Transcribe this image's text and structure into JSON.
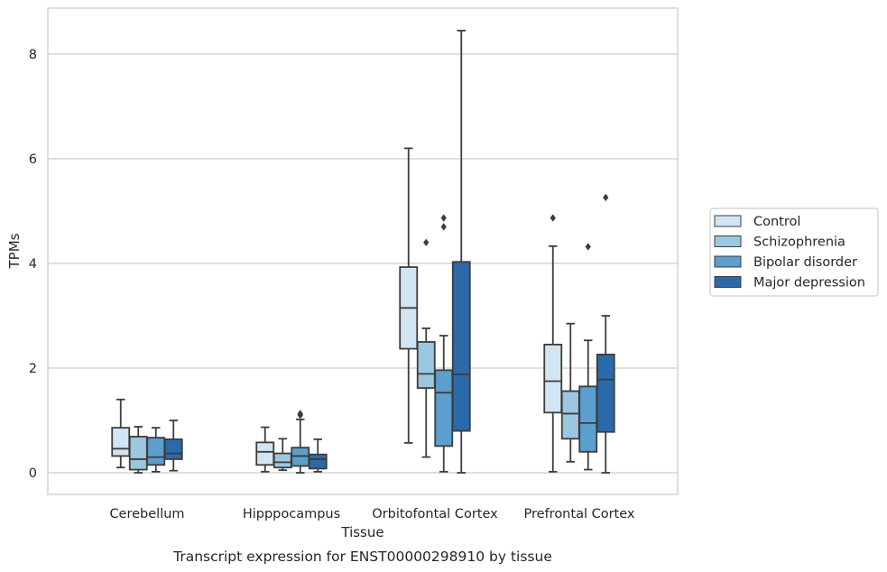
{
  "chart_data": {
    "type": "box",
    "caption": "Transcript expression for ENST00000298910 by tissue",
    "xlabel": "Tissue",
    "ylabel": "TPMs",
    "ylim": [
      -0.4,
      8.9
    ],
    "yticks": [
      0,
      2,
      4,
      6,
      8
    ],
    "grid": "horizontal",
    "legend_position": "right",
    "categories": [
      "Cerebellum",
      "Hipppocampus",
      "Orbitofontal Cortex",
      "Prefrontal Cortex"
    ],
    "series": [
      {
        "name": "Control",
        "color": "#d3e4f3",
        "boxes": [
          {
            "min": 0.1,
            "q1": 0.32,
            "median": 0.46,
            "q3": 0.86,
            "max": 1.4,
            "outliers": []
          },
          {
            "min": 0.02,
            "q1": 0.15,
            "median": 0.4,
            "q3": 0.58,
            "max": 0.87,
            "outliers": []
          },
          {
            "min": 0.57,
            "q1": 2.37,
            "median": 3.15,
            "q3": 3.93,
            "max": 6.2,
            "outliers": []
          },
          {
            "min": 0.02,
            "q1": 1.15,
            "median": 1.75,
            "q3": 2.45,
            "max": 4.33,
            "outliers": [
              4.87
            ]
          }
        ]
      },
      {
        "name": "Schizophrenia",
        "color": "#9ac8e0",
        "boxes": [
          {
            "min": 0.0,
            "q1": 0.06,
            "median": 0.26,
            "q3": 0.69,
            "max": 0.88,
            "outliers": []
          },
          {
            "min": 0.05,
            "q1": 0.1,
            "median": 0.2,
            "q3": 0.37,
            "max": 0.65,
            "outliers": []
          },
          {
            "min": 0.3,
            "q1": 1.62,
            "median": 1.89,
            "q3": 2.5,
            "max": 2.76,
            "outliers": [
              4.4
            ]
          },
          {
            "min": 0.21,
            "q1": 0.65,
            "median": 1.13,
            "q3": 1.56,
            "max": 2.85,
            "outliers": []
          }
        ]
      },
      {
        "name": "Bipolar disorder",
        "color": "#5a9fcd",
        "boxes": [
          {
            "min": 0.02,
            "q1": 0.15,
            "median": 0.3,
            "q3": 0.67,
            "max": 0.86,
            "outliers": []
          },
          {
            "min": 0.0,
            "q1": 0.13,
            "median": 0.32,
            "q3": 0.48,
            "max": 1.02,
            "outliers": [
              1.1,
              1.13
            ]
          },
          {
            "min": 0.02,
            "q1": 0.51,
            "median": 1.53,
            "q3": 1.96,
            "max": 2.62,
            "outliers": [
              4.7,
              4.87
            ]
          },
          {
            "min": 0.06,
            "q1": 0.4,
            "median": 0.95,
            "q3": 1.65,
            "max": 2.53,
            "outliers": [
              4.32
            ]
          }
        ]
      },
      {
        "name": "Major depression",
        "color": "#2a6aa8",
        "boxes": [
          {
            "min": 0.04,
            "q1": 0.26,
            "median": 0.37,
            "q3": 0.64,
            "max": 1.0,
            "outliers": []
          },
          {
            "min": 0.02,
            "q1": 0.08,
            "median": 0.26,
            "q3": 0.35,
            "max": 0.64,
            "outliers": []
          },
          {
            "min": 0.0,
            "q1": 0.8,
            "median": 1.88,
            "q3": 4.03,
            "max": 8.45,
            "outliers": []
          },
          {
            "min": 0.0,
            "q1": 0.78,
            "median": 1.78,
            "q3": 2.26,
            "max": 3.0,
            "outliers": [
              5.26
            ]
          }
        ]
      }
    ]
  }
}
